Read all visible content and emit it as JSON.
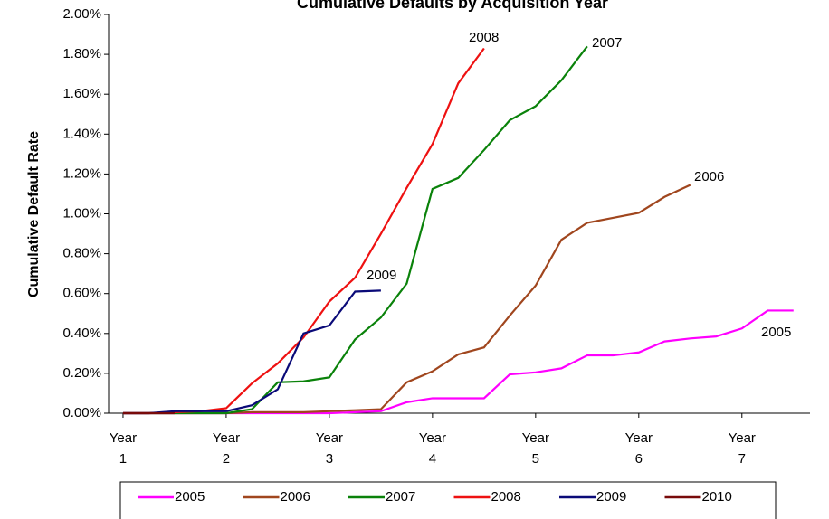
{
  "chart_data": {
    "type": "line",
    "title": "Cumulative Defaults by Acquisition Year",
    "ylabel": "Cumulative Default Rate",
    "x": [
      1,
      1.25,
      1.5,
      1.75,
      2,
      2.25,
      2.5,
      2.75,
      3,
      3.25,
      3.5,
      3.75,
      4,
      4.25,
      4.5,
      4.75,
      5,
      5.25,
      5.5,
      5.75,
      6,
      6.25,
      6.5,
      6.75,
      7,
      7.25,
      7.5
    ],
    "xlim": [
      0.86,
      7.66
    ],
    "xticks": [
      {
        "value": 1,
        "label": "Year 1"
      },
      {
        "value": 2,
        "label": "Year 2"
      },
      {
        "value": 3,
        "label": "Year 3"
      },
      {
        "value": 4,
        "label": "Year 4"
      },
      {
        "value": 5,
        "label": "Year 5"
      },
      {
        "value": 6,
        "label": "Year 6"
      },
      {
        "value": 7,
        "label": "Year 7"
      }
    ],
    "ylim": [
      0,
      2
    ],
    "yticks": [
      {
        "value": 0,
        "label": "0.00%"
      },
      {
        "value": 0.2,
        "label": "0.20%"
      },
      {
        "value": 0.4,
        "label": "0.40%"
      },
      {
        "value": 0.6,
        "label": "0.60%"
      },
      {
        "value": 0.8,
        "label": "0.80%"
      },
      {
        "value": 1,
        "label": "1.00%"
      },
      {
        "value": 1.2,
        "label": "1.20%"
      },
      {
        "value": 1.4,
        "label": "1.40%"
      },
      {
        "value": 1.6,
        "label": "1.60%"
      },
      {
        "value": 1.8,
        "label": "1.80%"
      },
      {
        "value": 2,
        "label": "2.00%"
      }
    ],
    "series": [
      {
        "name": "2005",
        "color": "#ff00ff",
        "values": [
          0,
          0,
          0,
          0,
          0,
          0,
          0,
          0,
          0,
          0.005,
          0.01,
          0.055,
          0.075,
          0.075,
          0.075,
          0.195,
          0.205,
          0.225,
          0.29,
          0.29,
          0.305,
          0.36,
          0.375,
          0.385,
          0.425,
          0.515,
          0.515
        ]
      },
      {
        "name": "2006",
        "color": "#a0461e",
        "values": [
          0,
          0,
          0,
          0,
          0,
          0.005,
          0.005,
          0.005,
          0.01,
          0.015,
          0.02,
          0.155,
          0.21,
          0.295,
          0.33,
          0.49,
          0.64,
          0.87,
          0.955,
          0.98,
          1.005,
          1.085,
          1.145,
          null,
          null,
          null,
          null
        ]
      },
      {
        "name": "2007",
        "color": "#0a820a",
        "values": [
          0,
          0,
          0,
          0,
          0,
          0.02,
          0.155,
          0.16,
          0.18,
          0.37,
          0.48,
          0.65,
          1.125,
          1.18,
          1.32,
          1.47,
          1.54,
          1.67,
          1.84,
          null,
          null,
          null,
          null,
          null,
          null,
          null,
          null
        ]
      },
      {
        "name": "2008",
        "color": "#ee1111",
        "values": [
          0,
          0,
          0.005,
          0.01,
          0.025,
          0.15,
          0.25,
          0.38,
          0.56,
          0.68,
          0.9,
          1.13,
          1.35,
          1.655,
          1.83,
          null,
          null,
          null,
          null,
          null,
          null,
          null,
          null,
          null,
          null,
          null,
          null
        ]
      },
      {
        "name": "2009",
        "color": "#0a0a78",
        "values": [
          0,
          0,
          0.01,
          0.01,
          0.01,
          0.04,
          0.12,
          0.4,
          0.44,
          0.61,
          0.615,
          null,
          null,
          null,
          null,
          null,
          null,
          null,
          null,
          null,
          null,
          null,
          null,
          null,
          null,
          null,
          null
        ]
      },
      {
        "name": "2010",
        "color": "#780a0a",
        "values": [
          0,
          0,
          0,
          null,
          null,
          null,
          null,
          null,
          null,
          null,
          null,
          null,
          null,
          null,
          null,
          null,
          null,
          null,
          null,
          null,
          null,
          null,
          null,
          null,
          null,
          null,
          null
        ]
      }
    ],
    "annotations": [
      "2008",
      "2007",
      "2006",
      "2009",
      "2005"
    ]
  }
}
